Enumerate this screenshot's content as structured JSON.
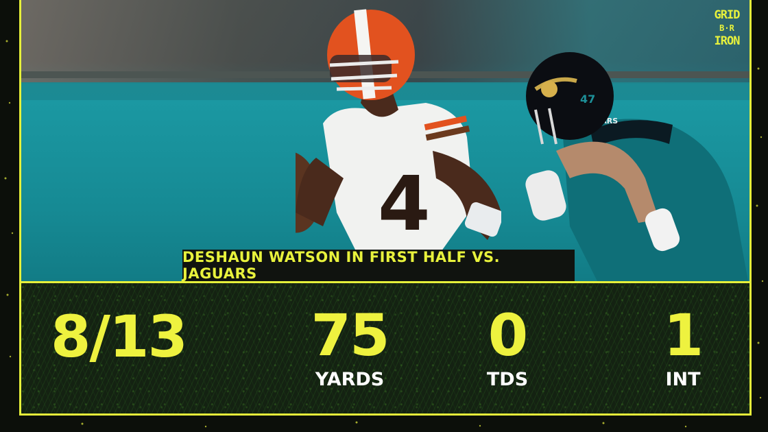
{
  "logo": {
    "line1": "GRID",
    "line2": "B·R",
    "line3": "IRON"
  },
  "caption": "DESHAUN WATSON IN FIRST HALF VS. JAGUARS",
  "stats": [
    {
      "value": "8/13",
      "label": ""
    },
    {
      "value": "75",
      "label": "YARDS"
    },
    {
      "value": "0",
      "label": "TDS"
    },
    {
      "value": "1",
      "label": "INT"
    }
  ],
  "photo": {
    "left_jersey_number": "4",
    "right_helmet_number": "47",
    "right_jersey_text": "JAGUARS"
  },
  "colors": {
    "accent": "#e6f03a",
    "background": "#0c0f0a",
    "stat_panel": "#142212",
    "teal": "#168c96",
    "browns_orange": "#e2521f"
  }
}
